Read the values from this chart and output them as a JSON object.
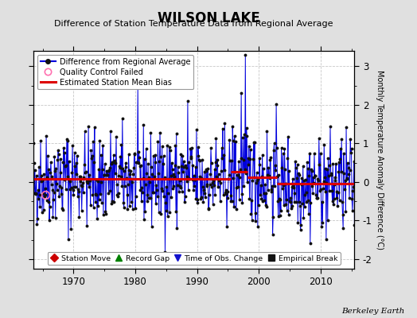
{
  "title": "WILSON LAKE",
  "subtitle": "Difference of Station Temperature Data from Regional Average",
  "ylabel": "Monthly Temperature Anomaly Difference (°C)",
  "xlabel_years": [
    1970,
    1980,
    1990,
    2000,
    2010
  ],
  "xlim": [
    1963.5,
    2015.5
  ],
  "ylim": [
    -2.25,
    3.4
  ],
  "yticks": [
    -2,
    -1,
    0,
    1,
    2,
    3
  ],
  "background_color": "#e0e0e0",
  "plot_bg_color": "#ffffff",
  "grid_color": "#c8c8c8",
  "seed": 42,
  "bias_segments": [
    {
      "x_start": 1963,
      "x_end": 1995.5,
      "bias": 0.09
    },
    {
      "x_start": 1995.5,
      "x_end": 1998.2,
      "bias": 0.27
    },
    {
      "x_start": 1998.2,
      "x_end": 2003.0,
      "bias": 0.12
    },
    {
      "x_start": 2003.0,
      "x_end": 2016,
      "bias": -0.04
    }
  ],
  "station_moves": [
    1995.7,
    1998.3,
    2002.5
  ],
  "qc_failed_year": 1965.5,
  "legend2_items": [
    {
      "label": "Station Move",
      "color": "#cc0000",
      "marker": "D"
    },
    {
      "label": "Record Gap",
      "color": "#008000",
      "marker": "^"
    },
    {
      "label": "Time of Obs. Change",
      "color": "#1111cc",
      "marker": "v"
    },
    {
      "label": "Empirical Break",
      "color": "#111111",
      "marker": "s"
    }
  ],
  "berkeley_earth_text": "Berkeley Earth"
}
